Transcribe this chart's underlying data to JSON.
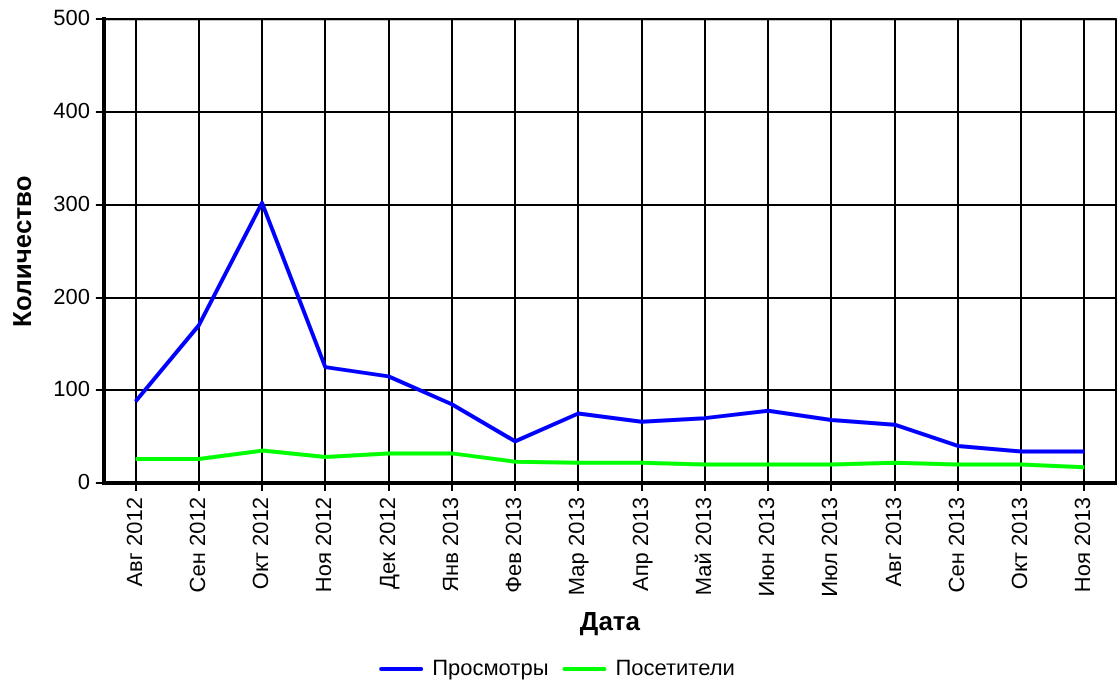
{
  "chart_data": {
    "type": "line",
    "xlabel": "Дата",
    "ylabel": "Количество",
    "categories": [
      "Авг 2012",
      "Сен 2012",
      "Окт 2012",
      "Ноя 2012",
      "Дек 2012",
      "Янв 2013",
      "Фев 2013",
      "Мар 2013",
      "Апр 2013",
      "Май 2013",
      "Июн 2013",
      "Июл 2013",
      "Авг 2013",
      "Сен 2013",
      "Окт 2013",
      "Ноя 2013"
    ],
    "series": [
      {
        "name": "Просмотры",
        "color": "#0000ff",
        "values": [
          88,
          170,
          302,
          125,
          115,
          85,
          45,
          75,
          66,
          70,
          78,
          68,
          63,
          40,
          34,
          34
        ]
      },
      {
        "name": "Посетители",
        "color": "#00ff00",
        "values": [
          26,
          26,
          35,
          28,
          32,
          32,
          23,
          22,
          22,
          20,
          20,
          20,
          22,
          20,
          20,
          17
        ]
      }
    ],
    "ylim": [
      0,
      500
    ],
    "yticks": [
      0,
      100,
      200,
      300,
      400,
      500
    ],
    "grid": true,
    "legend": "bottom",
    "marker": "none",
    "line_style": "solid"
  }
}
